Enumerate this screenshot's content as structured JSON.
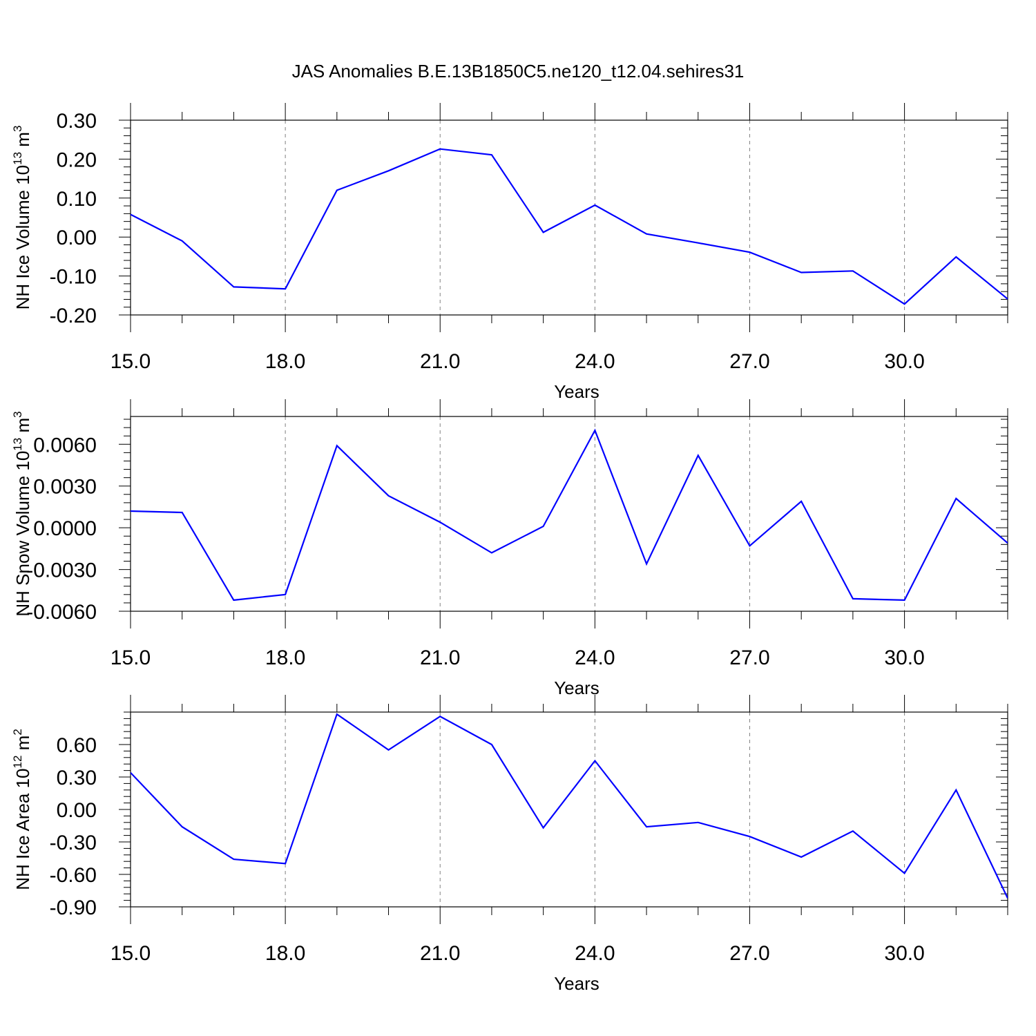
{
  "figure_title": "JAS Anomalies B.E.13B1850C5.ne120_t12.04.sehires31",
  "colors": {
    "line": "#0000ff",
    "axis": "#000000",
    "grid": "#808080"
  },
  "chart_data": [
    {
      "type": "line",
      "title": "",
      "xlabel": "Years",
      "ylabel_base": "NH Ice Volume 10",
      "ylabel_exp": "13",
      "ylabel_unit": " m",
      "ylabel_unit_exp": "3",
      "xlim": [
        15,
        32
      ],
      "ylim": [
        -0.2,
        0.3
      ],
      "x_ticks": [
        15,
        18,
        21,
        24,
        27,
        30
      ],
      "x_tick_labels": [
        "15.0",
        "18.0",
        "21.0",
        "24.0",
        "27.0",
        "30.0"
      ],
      "y_ticks": [
        -0.2,
        -0.1,
        0.0,
        0.1,
        0.2,
        0.3
      ],
      "y_tick_labels": [
        "-0.20",
        "-0.10",
        "0.00",
        "0.10",
        "0.20",
        "0.30"
      ],
      "grid": "vertical dashed at major x ticks",
      "x": [
        15,
        16,
        17,
        18,
        19,
        20,
        21,
        22,
        23,
        24,
        25,
        26,
        27,
        28,
        29,
        30,
        31,
        32
      ],
      "series": [
        {
          "values": [
            0.058,
            -0.01,
            -0.128,
            -0.133,
            0.12,
            0.17,
            0.226,
            0.211,
            0.012,
            0.082,
            0.008,
            -0.015,
            -0.039,
            -0.091,
            -0.087,
            -0.172,
            -0.051,
            -0.159
          ]
        }
      ]
    },
    {
      "type": "line",
      "title": "",
      "xlabel": "Years",
      "ylabel_base": "NH Snow Volume 10",
      "ylabel_exp": "13",
      "ylabel_unit": " m",
      "ylabel_unit_exp": "3",
      "xlim": [
        15,
        32
      ],
      "ylim": [
        -0.006,
        0.008
      ],
      "x_ticks": [
        15,
        18,
        21,
        24,
        27,
        30
      ],
      "x_tick_labels": [
        "15.0",
        "18.0",
        "21.0",
        "24.0",
        "27.0",
        "30.0"
      ],
      "y_ticks": [
        -0.006,
        -0.003,
        0.0,
        0.003,
        0.006
      ],
      "y_tick_labels": [
        "-0.0060",
        "-0.0030",
        "0.0000",
        "0.0030",
        "0.0060"
      ],
      "grid": "vertical dashed at major x ticks",
      "x": [
        15,
        16,
        17,
        18,
        19,
        20,
        21,
        22,
        23,
        24,
        25,
        26,
        27,
        28,
        29,
        30,
        31,
        32
      ],
      "series": [
        {
          "values": [
            0.0012,
            0.0011,
            -0.0052,
            -0.0048,
            0.0059,
            0.0023,
            0.0004,
            -0.0018,
            0.0001,
            0.007,
            -0.0026,
            0.0052,
            -0.0013,
            0.0019,
            -0.0051,
            -0.0052,
            0.0021,
            -0.0011
          ]
        }
      ]
    },
    {
      "type": "line",
      "title": "",
      "xlabel": "Years",
      "ylabel_base": "NH Ice Area 10",
      "ylabel_exp": "12",
      "ylabel_unit": " m",
      "ylabel_unit_exp": "2",
      "xlim": [
        15,
        32
      ],
      "ylim": [
        -0.9,
        0.9
      ],
      "x_ticks": [
        15,
        18,
        21,
        24,
        27,
        30
      ],
      "x_tick_labels": [
        "15.0",
        "18.0",
        "21.0",
        "24.0",
        "27.0",
        "30.0"
      ],
      "y_ticks": [
        -0.9,
        -0.6,
        -0.3,
        0.0,
        0.3,
        0.6
      ],
      "y_tick_labels": [
        "-0.90",
        "-0.60",
        "-0.30",
        "0.00",
        "0.30",
        "0.60"
      ],
      "grid": "vertical dashed at major x ticks",
      "x": [
        15,
        16,
        17,
        18,
        19,
        20,
        21,
        22,
        23,
        24,
        25,
        26,
        27,
        28,
        29,
        30,
        31,
        32
      ],
      "series": [
        {
          "values": [
            0.34,
            -0.16,
            -0.46,
            -0.5,
            0.88,
            0.55,
            0.86,
            0.6,
            -0.17,
            0.45,
            -0.16,
            -0.12,
            -0.25,
            -0.44,
            -0.2,
            -0.59,
            0.18,
            -0.82
          ]
        }
      ]
    }
  ]
}
